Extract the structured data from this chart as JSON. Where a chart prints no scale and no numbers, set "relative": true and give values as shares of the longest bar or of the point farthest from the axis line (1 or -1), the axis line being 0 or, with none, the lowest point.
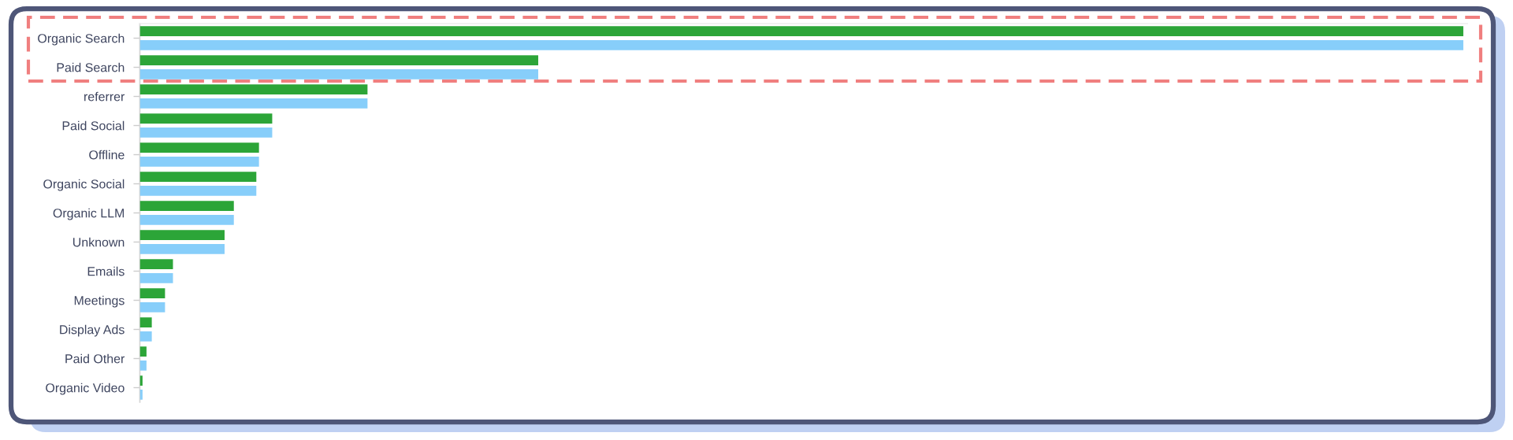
{
  "chart_data": {
    "type": "bar",
    "orientation": "horizontal",
    "relative": true,
    "tick_labels": "y",
    "categories": [
      "Organic Search",
      "Paid Search",
      "referrer",
      "Paid Social",
      "Offline",
      "Organic Social",
      "Organic LLM",
      "Unknown",
      "Emails",
      "Meetings",
      "Display Ads",
      "Paid Other",
      "Organic Video"
    ],
    "series": [
      {
        "color": "#2ca538",
        "values": [
          1,
          0.301,
          0.172,
          0.1,
          0.09,
          0.088,
          0.071,
          0.064,
          0.025,
          0.019,
          0.009,
          0.005,
          0.002
        ]
      },
      {
        "color": "#87cefa",
        "values": [
          1,
          0.301,
          0.172,
          0.1,
          0.09,
          0.088,
          0.071,
          0.064,
          0.025,
          0.019,
          0.009,
          0.005,
          0.002
        ]
      }
    ]
  }
}
